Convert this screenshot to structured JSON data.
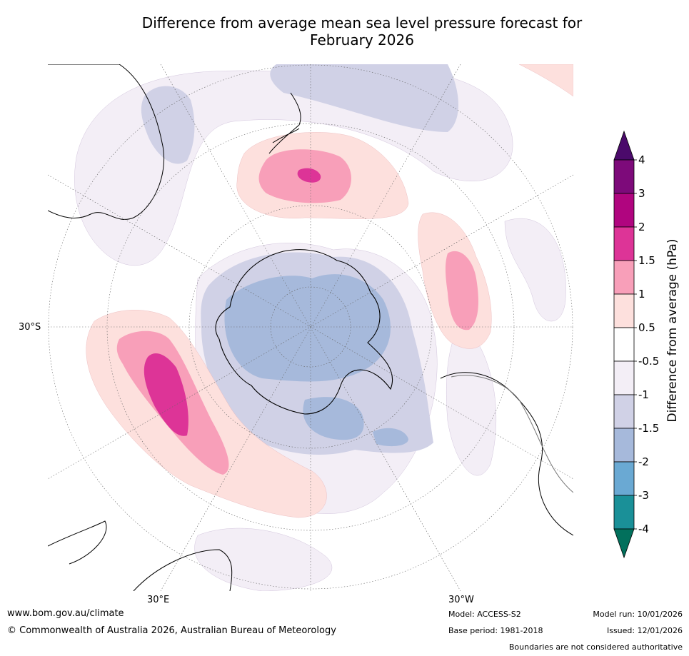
{
  "title_line1": "Difference from average mean sea level pressure forecast for",
  "title_line2": "February 2026",
  "map": {
    "projection": "south polar stereographic",
    "lat_label": "30°S",
    "lon_label_left": "30°E",
    "lon_label_right": "30°W"
  },
  "colorbar": {
    "label": "Difference from average (hPa)",
    "ticks": [
      "4",
      "3",
      "2",
      "1.5",
      "1",
      "0.5",
      "-0.5",
      "-1",
      "-1.5",
      "-2",
      "-3",
      "-4"
    ],
    "colors": {
      "gt4": "#4b0a6b",
      "3_4": "#7d0a7a",
      "2_3": "#b0057f",
      "1.5_2": "#dd3497",
      "1_1.5": "#f89fb9",
      "0.5_1": "#fde0dd",
      "neutral": "#ffffff",
      "-1_-0.5": "#f3eef6",
      "-1.5_-1": "#d0d1e6",
      "-2_-1.5": "#a6b9db",
      "-3_-2": "#6aa9d3",
      "-4_-3": "#1a9098",
      "lt-4": "#02705c"
    }
  },
  "footer": {
    "url": "www.bom.gov.au/climate",
    "copyright": "© Commonwealth of Australia 2026, Australian Bureau of Meteorology",
    "model": "Model: ACCESS-S2",
    "base_period": "Base period: 1981-2018",
    "model_run": "Model run: 10/01/2026",
    "issued": "Issued: 12/01/2026",
    "disclaimer": "Boundaries are not considered authoritative"
  }
}
